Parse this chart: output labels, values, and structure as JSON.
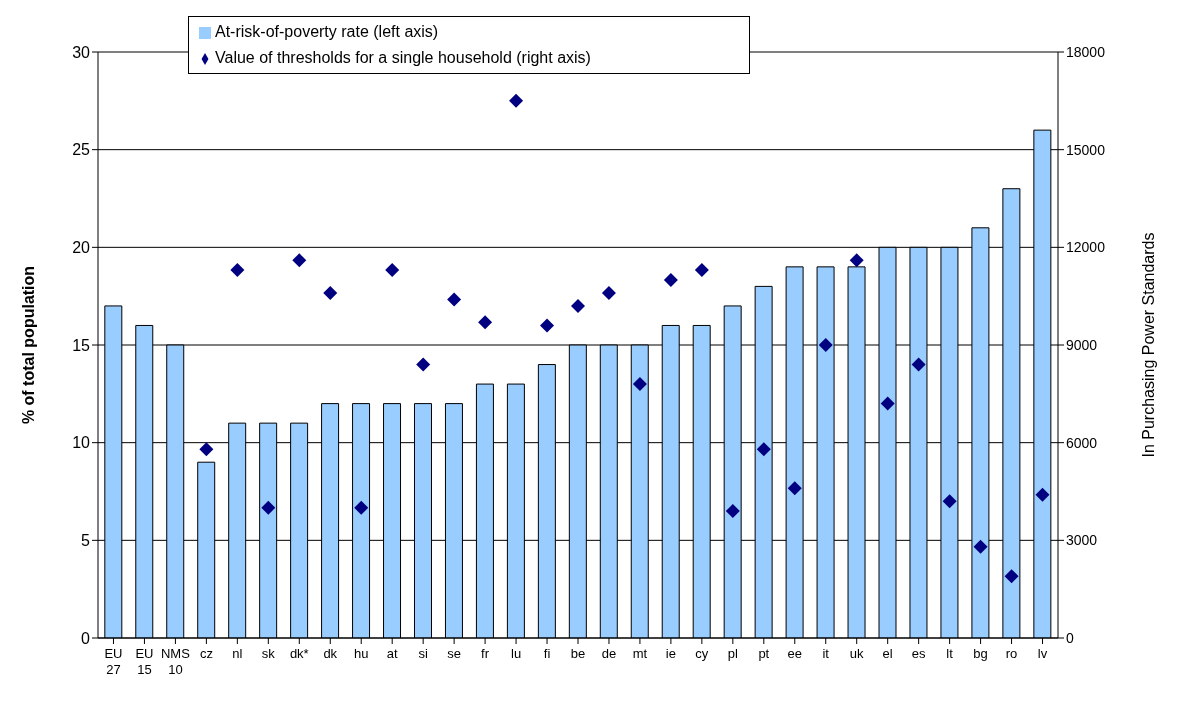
{
  "chart_data": {
    "type": "bar",
    "categories": [
      "EU 27",
      "EU 15",
      "NMS 10",
      "cz",
      "nl",
      "sk",
      "dk*",
      "dk",
      "hu",
      "at",
      "si",
      "se",
      "fr",
      "lu",
      "fi",
      "be",
      "de",
      "mt",
      "ie",
      "cy",
      "pl",
      "pt",
      "ee",
      "it",
      "uk",
      "el",
      "es",
      "lt",
      "bg",
      "ro",
      "lv"
    ],
    "series": [
      {
        "name": "At-risk-of-poverty rate (left axis)",
        "color": "#99ccff",
        "values": [
          17,
          16,
          15,
          9,
          11,
          11,
          11,
          12,
          12,
          12,
          12,
          12,
          13,
          13,
          14,
          15,
          15,
          15,
          16,
          16,
          17,
          18,
          19,
          19,
          19,
          20,
          20,
          20,
          21,
          23,
          26
        ]
      },
      {
        "name": "Value of thresholds for a single household (right axis)",
        "type": "scatter",
        "axis": "y2",
        "marker": "diamond",
        "color": "#000080",
        "values": [
          null,
          null,
          null,
          5800,
          11300,
          4000,
          11600,
          10600,
          4000,
          11300,
          8400,
          10400,
          9700,
          16500,
          9600,
          10200,
          10600,
          7800,
          11000,
          11300,
          3900,
          5800,
          4600,
          9000,
          11600,
          7200,
          8400,
          4200,
          2800,
          1900,
          4400
        ]
      }
    ],
    "ylabel": "% of total population",
    "y2label": "In Purchasing Power Standards",
    "ylim": [
      0,
      30
    ],
    "yticks": [
      0,
      5,
      10,
      15,
      20,
      25,
      30
    ],
    "y2lim": [
      0,
      18000
    ],
    "y2ticks": [
      0,
      3000,
      6000,
      9000,
      12000,
      15000,
      18000
    ],
    "grid": "y",
    "legend": "top left"
  }
}
